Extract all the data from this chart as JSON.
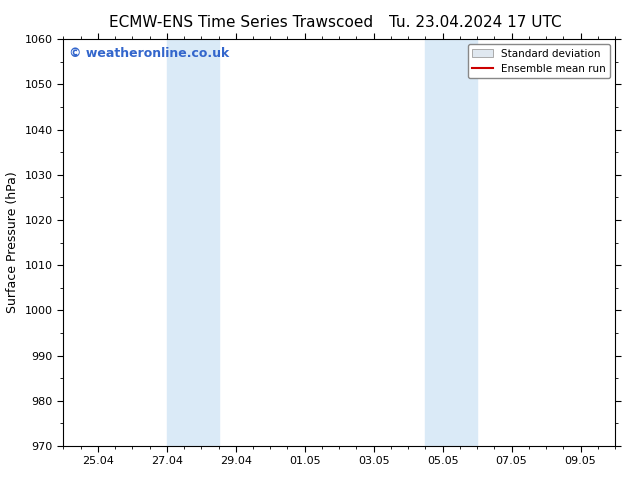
{
  "title_left": "ECMW-ENS Time Series Trawscoed",
  "title_right": "Tu. 23.04.2024 17 UTC",
  "ylabel": "Surface Pressure (hPa)",
  "ylim": [
    970,
    1060
  ],
  "yticks": [
    970,
    980,
    990,
    1000,
    1010,
    1020,
    1030,
    1040,
    1050,
    1060
  ],
  "xtick_labels": [
    "25.04",
    "27.04",
    "29.04",
    "01.05",
    "03.05",
    "05.05",
    "07.05",
    "09.05"
  ],
  "xtick_positions": [
    1.0,
    3.0,
    5.0,
    7.0,
    9.0,
    11.0,
    13.0,
    15.0
  ],
  "xlim": [
    0.0,
    16.0
  ],
  "shade_bands": [
    {
      "x_start": 3.0,
      "x_end": 4.5
    },
    {
      "x_start": 10.5,
      "x_end": 12.0
    }
  ],
  "shade_color": "#daeaf7",
  "watermark_text": "© weatheronline.co.uk",
  "watermark_color": "#3366cc",
  "legend_std_label": "Standard deviation",
  "legend_ens_label": "Ensemble mean run",
  "legend_std_facecolor": "#e0e8f0",
  "legend_std_edgecolor": "#aaaaaa",
  "legend_ens_color": "#cc0000",
  "title_fontsize": 11,
  "tick_fontsize": 8,
  "ylabel_fontsize": 9,
  "watermark_fontsize": 9,
  "background_color": "#ffffff",
  "spine_color": "#000000",
  "figure_width": 6.34,
  "figure_height": 4.9,
  "dpi": 100
}
